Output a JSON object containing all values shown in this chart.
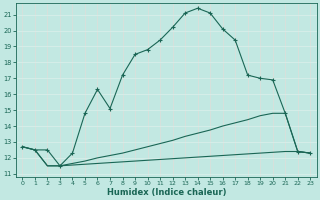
{
  "bg_color": "#c2e8e2",
  "grid_color": "#b0ddd7",
  "line_color": "#1a6655",
  "xlabel": "Humidex (Indice chaleur)",
  "xlim": [
    -0.5,
    23.5
  ],
  "ylim": [
    10.8,
    21.7
  ],
  "yticks": [
    11,
    12,
    13,
    14,
    15,
    16,
    17,
    18,
    19,
    20,
    21
  ],
  "xticks": [
    0,
    1,
    2,
    3,
    4,
    5,
    6,
    7,
    8,
    9,
    10,
    11,
    12,
    13,
    14,
    15,
    16,
    17,
    18,
    19,
    20,
    21,
    22,
    23
  ],
  "main_x": [
    0,
    1,
    2,
    3,
    4,
    5,
    6,
    7,
    8,
    9,
    10,
    11,
    12,
    13,
    14,
    15,
    16,
    17,
    18,
    19,
    20,
    21,
    22,
    23
  ],
  "main_y": [
    12.7,
    12.5,
    12.5,
    11.5,
    12.3,
    14.8,
    16.3,
    15.1,
    17.2,
    18.5,
    18.8,
    19.4,
    20.2,
    21.1,
    21.4,
    21.1,
    20.1,
    19.4,
    17.2,
    17.0,
    16.9,
    14.8,
    12.4,
    12.3
  ],
  "line2_x": [
    0,
    1,
    2,
    3,
    4,
    5,
    6,
    7,
    8,
    9,
    10,
    11,
    12,
    13,
    14,
    15,
    16,
    17,
    18,
    19,
    20,
    21,
    22,
    23
  ],
  "line2_y": [
    12.7,
    12.5,
    11.5,
    11.5,
    11.65,
    11.8,
    12.0,
    12.15,
    12.3,
    12.5,
    12.7,
    12.9,
    13.1,
    13.35,
    13.55,
    13.75,
    14.0,
    14.2,
    14.4,
    14.65,
    14.8,
    14.8,
    12.4,
    12.3
  ],
  "line3_x": [
    0,
    1,
    2,
    3,
    4,
    5,
    6,
    7,
    8,
    9,
    10,
    11,
    12,
    13,
    14,
    15,
    16,
    17,
    18,
    19,
    20,
    21,
    22,
    23
  ],
  "line3_y": [
    12.7,
    12.5,
    11.5,
    11.5,
    11.55,
    11.6,
    11.65,
    11.7,
    11.75,
    11.8,
    11.85,
    11.9,
    11.95,
    12.0,
    12.05,
    12.1,
    12.15,
    12.2,
    12.25,
    12.3,
    12.35,
    12.4,
    12.4,
    12.3
  ]
}
